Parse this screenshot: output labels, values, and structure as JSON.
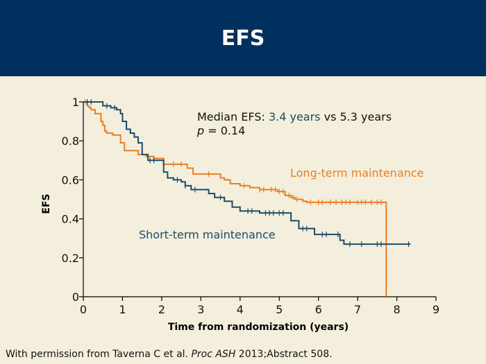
{
  "slide": {
    "title": "EFS",
    "footer": {
      "prefix": "With permission from Taverna C et al. ",
      "journal": "Proc ASH",
      "suffix": " 2013;Abstract 508."
    }
  },
  "colors": {
    "header_bg": "#00305e",
    "background": "#f3efdc",
    "long_term": "#ee7d22",
    "short_term": "#1b4a6b",
    "axis": "#000000"
  },
  "chart_data": {
    "type": "line",
    "step": true,
    "xlabel": "Time from randomization (years)",
    "ylabel": "EFS",
    "xlim": [
      0,
      9
    ],
    "ylim": [
      0,
      1
    ],
    "xticks": [
      "0",
      "1",
      "2",
      "3",
      "4",
      "5",
      "6",
      "7",
      "8",
      "9"
    ],
    "yticks": [
      "0",
      "0.2",
      "0.4",
      "0.6",
      "0.8",
      "1"
    ],
    "grid": false,
    "annotation": {
      "label": "Median EFS: ",
      "short_value": "3.4 years",
      "vs": " vs ",
      "long_value": "5.3 years",
      "p_symbol": "p",
      "p_rest": " = 0.14"
    },
    "series": [
      {
        "name": "Long-term maintenance",
        "color": "#ee7d22",
        "x": [
          0,
          0.1,
          0.15,
          0.2,
          0.3,
          0.45,
          0.5,
          0.55,
          0.6,
          0.75,
          0.95,
          1.05,
          1.4,
          1.6,
          1.8,
          2.05,
          2.65,
          2.8,
          3.5,
          3.6,
          3.75,
          4.0,
          4.25,
          4.5,
          4.95,
          5.15,
          5.3,
          5.4,
          5.5,
          5.6,
          5.7,
          7.73,
          7.73
        ],
        "y": [
          1,
          0.98,
          0.97,
          0.96,
          0.94,
          0.9,
          0.88,
          0.85,
          0.84,
          0.83,
          0.79,
          0.75,
          0.73,
          0.72,
          0.71,
          0.68,
          0.66,
          0.63,
          0.61,
          0.6,
          0.58,
          0.57,
          0.56,
          0.55,
          0.54,
          0.52,
          0.51,
          0.5,
          0.5,
          0.49,
          0.485,
          0.485,
          0
        ],
        "censor_x": [
          0.05,
          2.3,
          2.5,
          3.2,
          4.1,
          4.5,
          4.6,
          4.8,
          4.9,
          5.0,
          5.1,
          5.25,
          5.35,
          5.45,
          5.8,
          6.0,
          6.1,
          6.3,
          6.45,
          6.6,
          6.7,
          6.8,
          7.0,
          7.1,
          7.2,
          7.35,
          7.5,
          7.6
        ]
      },
      {
        "name": "Short-term maintenance",
        "color": "#1b4a6b",
        "x": [
          0,
          0.5,
          0.7,
          0.85,
          0.95,
          1.0,
          1.1,
          1.2,
          1.3,
          1.4,
          1.5,
          1.65,
          2.05,
          2.15,
          2.3,
          2.5,
          2.6,
          2.75,
          3.2,
          3.35,
          3.6,
          3.8,
          4.0,
          4.5,
          5.3,
          5.5,
          5.9,
          6.55,
          6.65,
          8.35
        ],
        "y": [
          1,
          0.98,
          0.97,
          0.96,
          0.94,
          0.9,
          0.86,
          0.84,
          0.82,
          0.79,
          0.73,
          0.7,
          0.64,
          0.61,
          0.6,
          0.59,
          0.57,
          0.55,
          0.53,
          0.51,
          0.49,
          0.46,
          0.44,
          0.43,
          0.39,
          0.35,
          0.32,
          0.29,
          0.27,
          0.27
        ],
        "censor_x": [
          0.1,
          0.2,
          0.6,
          0.8,
          1.7,
          1.8,
          2.4,
          2.6,
          2.85,
          3.5,
          4.2,
          4.3,
          4.65,
          4.75,
          4.85,
          5.0,
          5.1,
          5.6,
          5.7,
          6.1,
          6.2,
          6.5,
          6.8,
          7.1,
          7.5,
          7.6,
          8.3
        ]
      }
    ]
  }
}
